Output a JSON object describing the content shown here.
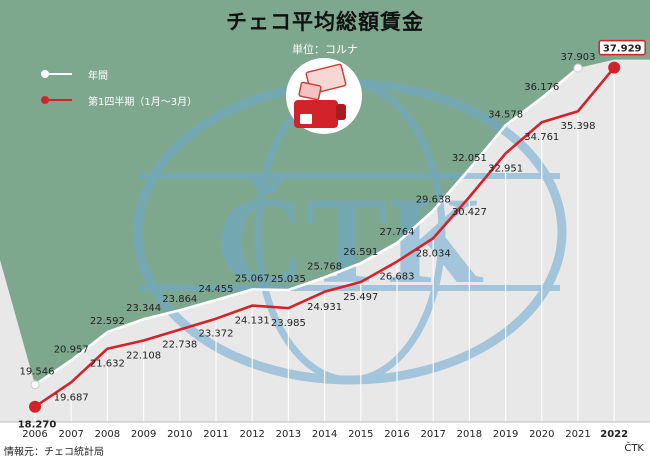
{
  "title": "チェコ平均総額賃金",
  "subtitle": "単位：コルナ",
  "source": "情報元：チェコ統計局",
  "brand": "ČTK",
  "watermark": "ČTK",
  "legend": {
    "annual": "年間",
    "q1": "第1四半期（1月～3月）"
  },
  "colors": {
    "background_top": "#7ea88e",
    "panel": "#e8e8e8",
    "annual_line": "#ffffff",
    "q1_line": "#d2232a",
    "watermark": "#6ba9d2"
  },
  "chart_data": {
    "type": "line",
    "categories": [
      "2006",
      "2007",
      "2008",
      "2009",
      "2010",
      "2011",
      "2012",
      "2013",
      "2014",
      "2015",
      "2016",
      "2017",
      "2018",
      "2019",
      "2020",
      "2021",
      "2022"
    ],
    "series": [
      {
        "name": "年間",
        "values": [
          19.546,
          20.957,
          22.592,
          23.344,
          23.864,
          24.455,
          25.067,
          25.035,
          25.768,
          26.591,
          27.764,
          29.638,
          32.051,
          34.578,
          36.176,
          37.903,
          null
        ],
        "labels": [
          "19.546",
          "20.957",
          "22.592",
          "23.344",
          "23.864",
          "24.455",
          "25.067",
          "25.035",
          "25.768",
          "26.591",
          "27.764",
          "29.638",
          "32.051",
          "34.578",
          "36.176",
          "37.903",
          ""
        ]
      },
      {
        "name": "第1四半期（1月～3月）",
        "values": [
          18.27,
          19.687,
          21.632,
          22.108,
          22.738,
          23.372,
          24.131,
          23.985,
          24.931,
          25.497,
          26.683,
          28.034,
          30.427,
          32.951,
          34.761,
          35.398,
          37.929
        ],
        "labels": [
          "18.270",
          "19.687",
          "21.632",
          "22.108",
          "22.738",
          "23.372",
          "24.131",
          "23.985",
          "24.931",
          "25.497",
          "26.683",
          "28.034",
          "30.427",
          "32.951",
          "34.761",
          "35.398",
          "37.929"
        ]
      }
    ],
    "title": "チェコ平均総額賃金",
    "subtitle": "単位：コルナ",
    "xlabel": "",
    "ylabel": "",
    "ylim": [
      17.5,
      38.6
    ],
    "grid": false,
    "legend_position": "top-left"
  }
}
